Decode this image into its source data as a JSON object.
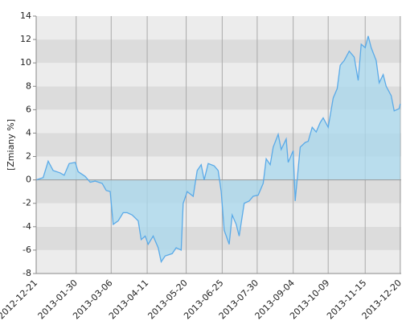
{
  "chart_data": {
    "type": "area",
    "y_label": "[Zmiany %]",
    "x": [
      "2012-12-21",
      "2012-12-28",
      "2013-01-02",
      "2013-01-07",
      "2013-01-14",
      "2013-01-18",
      "2013-01-23",
      "2013-01-29",
      "2013-02-01",
      "2013-02-08",
      "2013-02-13",
      "2013-02-18",
      "2013-02-25",
      "2013-03-01",
      "2013-03-05",
      "2013-03-08",
      "2013-03-13",
      "2013-03-18",
      "2013-03-22",
      "2013-03-27",
      "2013-04-02",
      "2013-04-05",
      "2013-04-09",
      "2013-04-12",
      "2013-04-17",
      "2013-04-22",
      "2013-04-25",
      "2013-04-29",
      "2013-05-06",
      "2013-05-10",
      "2013-05-15",
      "2013-05-17",
      "2013-05-21",
      "2013-05-27",
      "2013-05-31",
      "2013-06-04",
      "2013-06-07",
      "2013-06-11",
      "2013-06-17",
      "2013-06-21",
      "2013-06-24",
      "2013-06-27",
      "2013-07-02",
      "2013-07-05",
      "2013-07-09",
      "2013-07-12",
      "2013-07-17",
      "2013-07-22",
      "2013-07-26",
      "2013-07-31",
      "2013-08-05",
      "2013-08-08",
      "2013-08-12",
      "2013-08-15",
      "2013-08-20",
      "2013-08-23",
      "2013-08-28",
      "2013-08-30",
      "2013-09-04",
      "2013-09-06",
      "2013-09-11",
      "2013-09-16",
      "2013-09-19",
      "2013-09-23",
      "2013-09-27",
      "2013-10-01",
      "2013-10-04",
      "2013-10-09",
      "2013-10-14",
      "2013-10-18",
      "2013-10-21",
      "2013-10-25",
      "2013-10-30",
      "2013-11-04",
      "2013-11-08",
      "2013-11-11",
      "2013-11-15",
      "2013-11-18",
      "2013-11-21",
      "2013-11-26",
      "2013-11-29",
      "2013-12-03",
      "2013-12-06",
      "2013-12-11",
      "2013-12-14",
      "2013-12-19",
      "2013-12-20"
    ],
    "values": [
      0,
      0.2,
      1.6,
      0.8,
      0.6,
      0.4,
      1.4,
      1.5,
      0.7,
      0.3,
      -0.2,
      -0.1,
      -0.3,
      -0.9,
      -1.0,
      -3.8,
      -3.5,
      -2.8,
      -2.8,
      -3.0,
      -3.5,
      -5.1,
      -4.8,
      -5.5,
      -4.8,
      -5.8,
      -7.0,
      -6.5,
      -6.3,
      -5.8,
      -6.0,
      -2.0,
      -1.0,
      -1.4,
      0.8,
      1.3,
      0.0,
      1.4,
      1.2,
      0.8,
      -1.0,
      -4.3,
      -5.5,
      -3.0,
      -3.8,
      -4.8,
      -2.0,
      -1.8,
      -1.4,
      -1.3,
      -0.3,
      1.8,
      1.3,
      2.8,
      3.9,
      2.6,
      3.5,
      1.5,
      2.5,
      -1.8,
      2.8,
      3.2,
      3.3,
      4.5,
      4.1,
      4.9,
      5.3,
      4.5,
      7.0,
      7.8,
      9.8,
      10.2,
      11.0,
      10.5,
      8.5,
      11.6,
      11.3,
      12.3,
      11.3,
      10.2,
      8.3,
      9.0,
      8.0,
      7.2,
      5.9,
      6.1,
      6.5
    ],
    "line_color": "#5aaae8",
    "fill_color": "#a8d8ee",
    "xlim": [
      "2012-12-21",
      "2013-12-21"
    ],
    "xticks": [
      "2012-12-21",
      "2013-01-30",
      "2013-03-06",
      "2013-04-11",
      "2013-05-20",
      "2013-06-25",
      "2013-07-30",
      "2013-09-04",
      "2013-10-09",
      "2013-11-15",
      "2013-12-20"
    ],
    "ylim": [
      -8,
      14
    ],
    "yticks": [
      -8,
      -6,
      -4,
      -2,
      0,
      2,
      4,
      6,
      8,
      10,
      12,
      14
    ],
    "band_colors": [
      "#ececec",
      "#dcdcdc"
    ],
    "grid": true
  }
}
